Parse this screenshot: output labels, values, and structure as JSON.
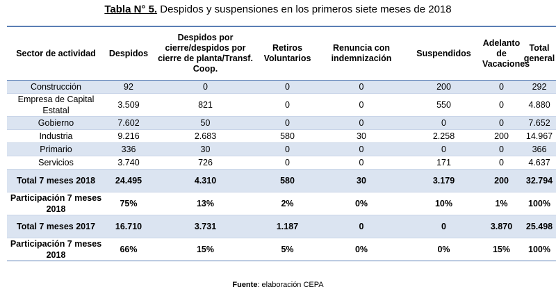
{
  "title": {
    "label": "Tabla N° 5.",
    "text": " Despidos y suspensiones en los primeros siete meses de 2018"
  },
  "table": {
    "headers": [
      "Sector de actividad",
      "Despidos",
      "Despidos por cierre/despidos por cierre de planta/Transf. Coop.",
      "Retiros Voluntarios",
      "Renuncia con indemnización",
      "Suspendidos",
      "Adelanto de Vacaciones",
      "Total general"
    ],
    "rows": [
      {
        "cells": [
          "Construcción",
          "92",
          "0",
          "0",
          "0",
          "200",
          "0",
          "292"
        ]
      },
      {
        "cells": [
          "Empresa de Capital Estatal",
          "3.509",
          "821",
          "0",
          "0",
          "550",
          "0",
          "4.880"
        ]
      },
      {
        "cells": [
          "Gobierno",
          "7.602",
          "50",
          "0",
          "0",
          "0",
          "0",
          "7.652"
        ]
      },
      {
        "cells": [
          "Industria",
          "9.216",
          "2.683",
          "580",
          "30",
          "2.258",
          "200",
          "14.967"
        ]
      },
      {
        "cells": [
          "Primario",
          "336",
          "30",
          "0",
          "0",
          "0",
          "0",
          "366"
        ]
      },
      {
        "cells": [
          "Servicios",
          "3.740",
          "726",
          "0",
          "0",
          "171",
          "0",
          "4.637"
        ]
      },
      {
        "cells": [
          "Total 7 meses 2018",
          "24.495",
          "4.310",
          "580",
          "30",
          "3.179",
          "200",
          "32.794"
        ]
      },
      {
        "cells": [
          "Participación 7 meses 2018",
          "75%",
          "13%",
          "2%",
          "0%",
          "10%",
          "1%",
          "100%"
        ]
      },
      {
        "cells": [
          "Total 7 meses 2017",
          "16.710",
          "3.731",
          "1.187",
          "0",
          "0",
          "3.870",
          "25.498"
        ]
      },
      {
        "cells": [
          "Participación 7 meses 2018",
          "66%",
          "15%",
          "5%",
          "0%",
          "0%",
          "15%",
          "100%"
        ]
      }
    ]
  },
  "source": {
    "label": "Fuente",
    "text": ": elaboración CEPA"
  }
}
